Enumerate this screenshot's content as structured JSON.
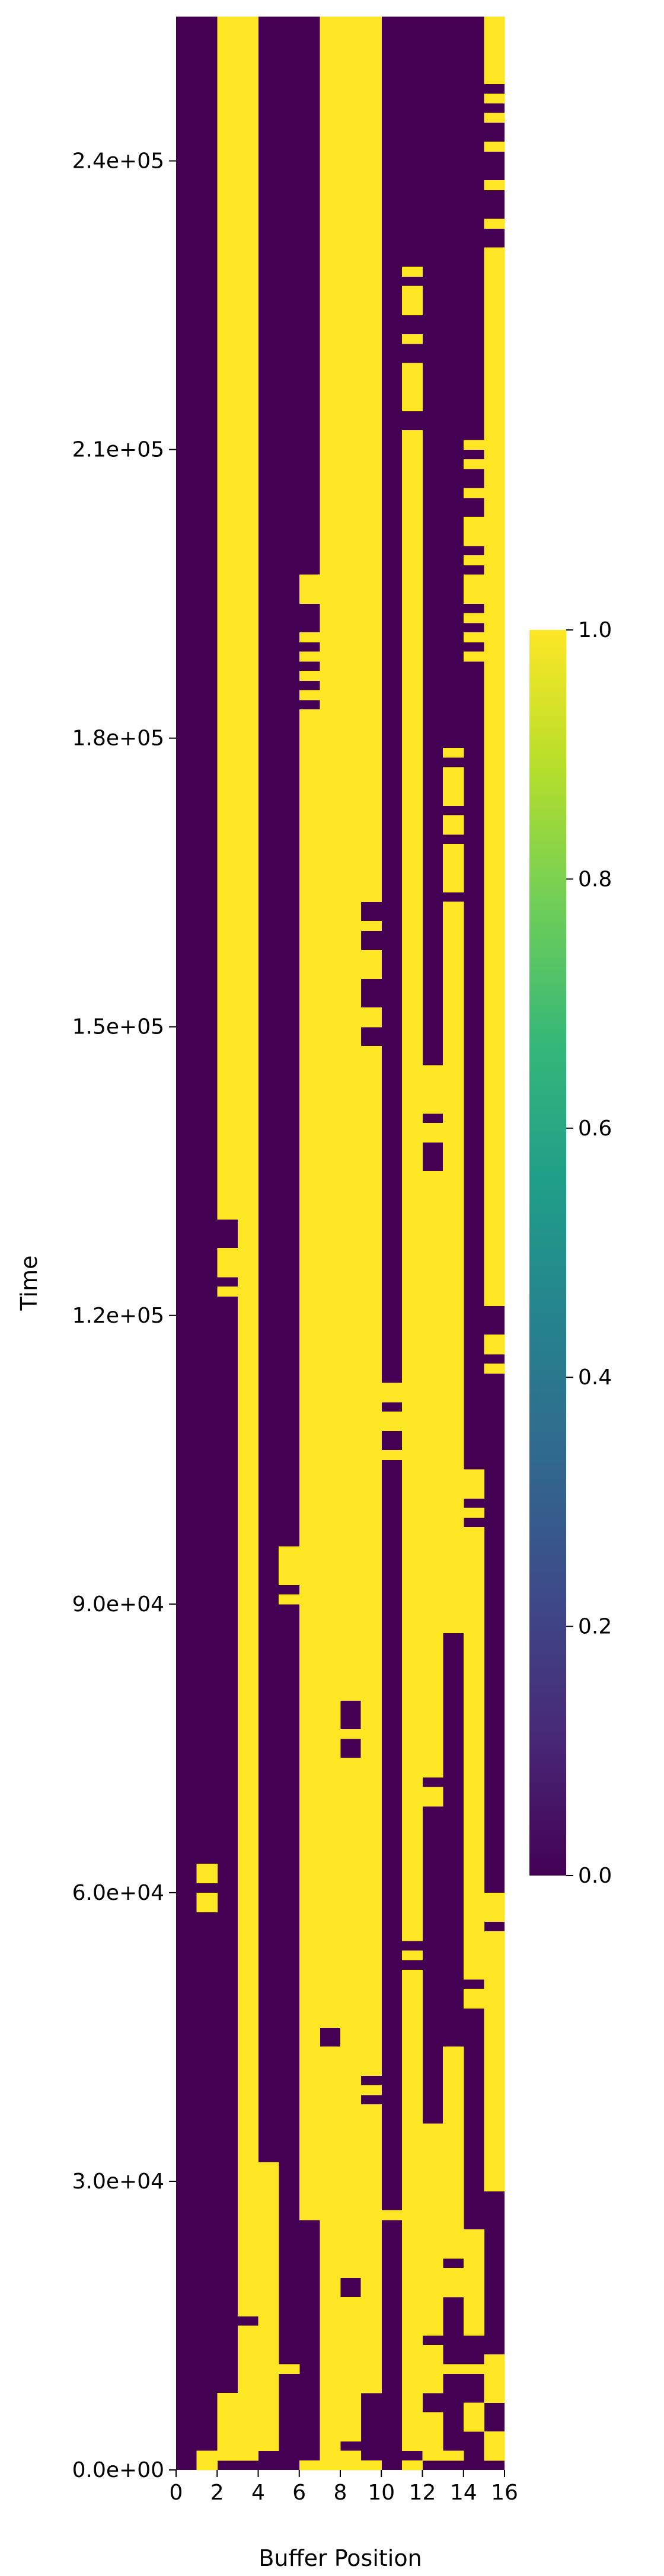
{
  "chart_data": {
    "type": "heatmap",
    "title": "",
    "xlabel": "Buffer Position",
    "ylabel": "Time",
    "n_columns": 16,
    "xlim": [
      0,
      16
    ],
    "x_ticks": [
      0,
      2,
      4,
      6,
      8,
      10,
      12,
      14,
      16
    ],
    "x_tick_labels": [
      "0",
      "2",
      "4",
      "6",
      "8",
      "10",
      "12",
      "14",
      "16"
    ],
    "ylim": [
      0,
      255000
    ],
    "y_ticks": [
      0,
      30000,
      60000,
      90000,
      120000,
      150000,
      180000,
      210000,
      240000
    ],
    "y_tick_labels": [
      "0.0e+00",
      "3.0e+04",
      "6.0e+04",
      "9.0e+04",
      "1.2e+05",
      "1.5e+05",
      "1.8e+05",
      "2.1e+05",
      "2.4e+05"
    ],
    "time_step": 1000,
    "colormap": "viridis",
    "colors": {
      "low": "#440154",
      "high": "#fde725"
    },
    "colorbar": {
      "range": [
        0.0,
        1.0
      ],
      "ticks": [
        0.0,
        0.2,
        0.4,
        0.6,
        0.8,
        1.0
      ],
      "tick_labels": [
        "0.0",
        "0.2",
        "0.4",
        "0.6",
        "0.8",
        "1.0"
      ]
    },
    "value_encoding": "Each column lists [start_time, end_time] intervals where the value is 1.0; elsewhere the value is 0.0.",
    "columns": [
      {
        "position": 0,
        "ones": []
      },
      {
        "position": 1,
        "ones": [
          [
            0,
            2000
          ],
          [
            58000,
            60000
          ],
          [
            61000,
            63000
          ]
        ]
      },
      {
        "position": 2,
        "ones": [
          [
            1000,
            8000
          ],
          [
            122000,
            123000
          ],
          [
            124000,
            127000
          ],
          [
            130000,
            255000
          ]
        ]
      },
      {
        "position": 3,
        "ones": [
          [
            1000,
            15000
          ],
          [
            16000,
            255000
          ]
        ]
      },
      {
        "position": 4,
        "ones": [
          [
            2000,
            32000
          ]
        ]
      },
      {
        "position": 5,
        "ones": [
          [
            10000,
            11000
          ],
          [
            90000,
            91000
          ],
          [
            92000,
            96000
          ]
        ]
      },
      {
        "position": 6,
        "ones": [
          [
            0,
            1000
          ],
          [
            26000,
            183000
          ],
          [
            184000,
            185000
          ],
          [
            186000,
            187000
          ],
          [
            188000,
            189000
          ],
          [
            190000,
            191000
          ],
          [
            194000,
            197000
          ]
        ]
      },
      {
        "position": 7,
        "ones": [
          [
            0,
            44000
          ],
          [
            46000,
            255000
          ]
        ]
      },
      {
        "position": 8,
        "ones": [
          [
            0,
            2000
          ],
          [
            3000,
            18000
          ],
          [
            20000,
            74000
          ],
          [
            76000,
            77000
          ],
          [
            80000,
            255000
          ]
        ]
      },
      {
        "position": 9,
        "ones": [
          [
            0,
            1000
          ],
          [
            8000,
            38000
          ],
          [
            39000,
            40000
          ],
          [
            41000,
            148000
          ],
          [
            150000,
            152000
          ],
          [
            155000,
            158000
          ],
          [
            160000,
            161000
          ],
          [
            163000,
            255000
          ]
        ]
      },
      {
        "position": 10,
        "ones": [
          [
            26000,
            27000
          ],
          [
            105000,
            106000
          ],
          [
            108000,
            110000
          ],
          [
            111000,
            113000
          ]
        ]
      },
      {
        "position": 11,
        "ones": [
          [
            0,
            1000
          ],
          [
            2000,
            52000
          ],
          [
            53000,
            54000
          ],
          [
            55000,
            212000
          ],
          [
            214000,
            219000
          ],
          [
            221000,
            222000
          ],
          [
            224000,
            227000
          ],
          [
            228000,
            229000
          ]
        ]
      },
      {
        "position": 12,
        "ones": [
          [
            1000,
            6000
          ],
          [
            8000,
            13000
          ],
          [
            14000,
            36000
          ],
          [
            69000,
            71000
          ],
          [
            72000,
            135000
          ],
          [
            138000,
            140000
          ],
          [
            141000,
            146000
          ]
        ]
      },
      {
        "position": 13,
        "ones": [
          [
            1000,
            2000
          ],
          [
            10000,
            11000
          ],
          [
            18000,
            21000
          ],
          [
            22000,
            44000
          ],
          [
            87000,
            163000
          ],
          [
            164000,
            169000
          ],
          [
            170000,
            172000
          ],
          [
            173000,
            177000
          ],
          [
            178000,
            179000
          ]
        ]
      },
      {
        "position": 14,
        "ones": [
          [
            4000,
            7000
          ],
          [
            10000,
            11000
          ],
          [
            14000,
            25000
          ],
          [
            48000,
            50000
          ],
          [
            51000,
            98000
          ],
          [
            99000,
            100000
          ],
          [
            101000,
            104000
          ],
          [
            188000,
            189000
          ],
          [
            190000,
            191000
          ],
          [
            192000,
            193000
          ],
          [
            194000,
            197000
          ],
          [
            198000,
            199000
          ],
          [
            200000,
            203000
          ],
          [
            205000,
            206000
          ],
          [
            208000,
            209000
          ],
          [
            210000,
            211000
          ]
        ]
      },
      {
        "position": 15,
        "ones": [
          [
            1000,
            4000
          ],
          [
            7000,
            12000
          ],
          [
            29000,
            56000
          ],
          [
            57000,
            60000
          ],
          [
            114000,
            115000
          ],
          [
            116000,
            118000
          ],
          [
            121000,
            231000
          ],
          [
            233000,
            234000
          ],
          [
            237000,
            238000
          ],
          [
            241000,
            242000
          ],
          [
            244000,
            245000
          ],
          [
            246000,
            247000
          ],
          [
            248000,
            255000
          ]
        ]
      }
    ]
  }
}
